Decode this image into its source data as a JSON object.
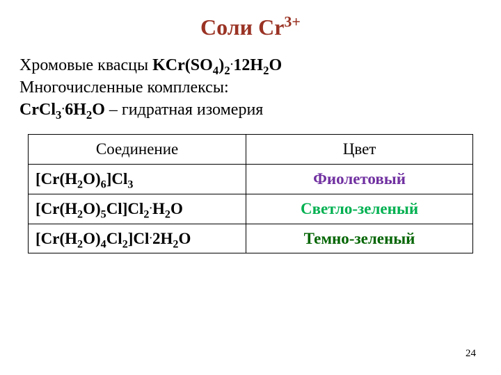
{
  "title": {
    "prefix": "Соли Cr",
    "sup": "3+",
    "color": "#9a3324"
  },
  "intro": {
    "line1_prefix": "Хромовые квасцы ",
    "line1_formula_parts": [
      "KCr(SO",
      "4",
      ")",
      "2",
      "·",
      "12H",
      "2",
      "O"
    ],
    "line2": "Многочисленные комплексы:",
    "line3_formula_parts": [
      "CrCl",
      "3",
      "·",
      "6H",
      "2",
      "O"
    ],
    "line3_suffix": " – гидратная изомерия"
  },
  "table": {
    "headers": [
      "Соединение",
      "Цвет"
    ],
    "rows": [
      {
        "compound_parts": [
          "[Cr(H",
          "2",
          "O)",
          "6",
          "]Cl",
          "3"
        ],
        "color_name": "Фиолетовый",
        "color_hex": "#7030a0"
      },
      {
        "compound_parts": [
          "[Cr(H",
          "2",
          "O)",
          "5",
          "Cl]Cl",
          "2",
          "·",
          "H",
          "2",
          "O"
        ],
        "color_name": "Светло-зеленый",
        "color_hex": "#00b050"
      },
      {
        "compound_parts": [
          "[Cr(H",
          "2",
          "O)",
          "4",
          "Cl",
          "2",
          "]Cl",
          "·",
          "2H",
          "2",
          "O"
        ],
        "color_name": "Темно-зеленый",
        "color_hex": "#006400"
      }
    ]
  },
  "page_number": "24"
}
